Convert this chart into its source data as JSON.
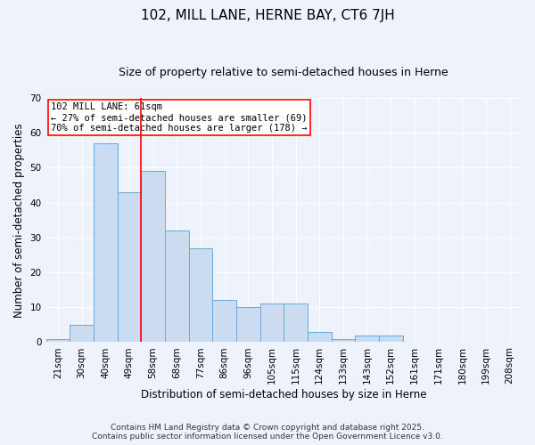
{
  "title": "102, MILL LANE, HERNE BAY, CT6 7JH",
  "subtitle": "Size of property relative to semi-detached houses in Herne",
  "xlabel": "Distribution of semi-detached houses by size in Herne",
  "ylabel": "Number of semi-detached properties",
  "categories": [
    "21sqm",
    "30sqm",
    "40sqm",
    "49sqm",
    "58sqm",
    "68sqm",
    "77sqm",
    "86sqm",
    "96sqm",
    "105sqm",
    "115sqm",
    "124sqm",
    "133sqm",
    "143sqm",
    "152sqm",
    "161sqm",
    "171sqm",
    "180sqm",
    "199sqm",
    "208sqm"
  ],
  "values": [
    1,
    5,
    57,
    43,
    49,
    32,
    27,
    12,
    10,
    11,
    11,
    3,
    1,
    2,
    2,
    0,
    0,
    0,
    0,
    0
  ],
  "bar_color": "#ccdcf0",
  "bar_edge_color": "#6aaad4",
  "property_line_x": 3.5,
  "annotation_label": "102 MILL LANE: 61sqm",
  "annotation_line1": "← 27% of semi-detached houses are smaller (69)",
  "annotation_line2": "70% of semi-detached houses are larger (178) →",
  "ylim": [
    0,
    70
  ],
  "yticks": [
    0,
    10,
    20,
    30,
    40,
    50,
    60,
    70
  ],
  "footer_line1": "Contains HM Land Registry data © Crown copyright and database right 2025.",
  "footer_line2": "Contains public sector information licensed under the Open Government Licence v3.0.",
  "background_color": "#eef2fb",
  "grid_color": "#ffffff",
  "title_fontsize": 11,
  "subtitle_fontsize": 9,
  "axis_label_fontsize": 8.5,
  "tick_fontsize": 7.5,
  "annotation_fontsize": 7.5,
  "footer_fontsize": 6.5
}
